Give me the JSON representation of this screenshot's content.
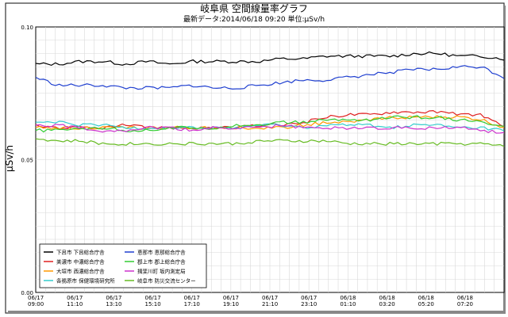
{
  "chart_data": {
    "type": "line",
    "title": "岐阜県 空間線量率グラフ",
    "subtitle": "最新データ:2014/06/18 09:20  単位:μSv/h",
    "ylabel": "μSv/h",
    "ylim": [
      0.0,
      0.1
    ],
    "yticks": [
      "0.00",
      "0.05",
      "0.10"
    ],
    "xticks": [
      {
        "date": "06/17",
        "time": "09:00"
      },
      {
        "date": "06/17",
        "time": "11:10"
      },
      {
        "date": "06/17",
        "time": "13:10"
      },
      {
        "date": "06/17",
        "time": "15:10"
      },
      {
        "date": "06/17",
        "time": "17:10"
      },
      {
        "date": "06/17",
        "time": "19:10"
      },
      {
        "date": "06/17",
        "time": "21:10"
      },
      {
        "date": "06/17",
        "time": "23:10"
      },
      {
        "date": "06/18",
        "time": "01:10"
      },
      {
        "date": "06/18",
        "time": "03:20"
      },
      {
        "date": "06/18",
        "time": "05:20"
      },
      {
        "date": "06/18",
        "time": "07:20"
      }
    ],
    "grid": true,
    "legend_position": "bottom-left",
    "series": [
      {
        "name": "下呂市  下呂総合庁舎",
        "color": "#000000",
        "values": [
          0.086,
          0.086,
          0.087,
          0.087,
          0.086,
          0.087,
          0.086,
          0.087,
          0.087,
          0.087,
          0.087,
          0.088,
          0.088,
          0.089,
          0.089,
          0.089,
          0.089,
          0.09,
          0.09,
          0.089,
          0.089,
          0.088
        ]
      },
      {
        "name": "美濃市  中濃総合庁舎",
        "color": "#e02020",
        "values": [
          0.063,
          0.062,
          0.062,
          0.062,
          0.063,
          0.062,
          0.062,
          0.062,
          0.062,
          0.062,
          0.063,
          0.063,
          0.064,
          0.066,
          0.067,
          0.067,
          0.068,
          0.068,
          0.068,
          0.067,
          0.067,
          0.062
        ]
      },
      {
        "name": "大垣市  西濃総合庁舎",
        "color": "#ff9900",
        "values": [
          0.062,
          0.062,
          0.062,
          0.062,
          0.062,
          0.062,
          0.062,
          0.062,
          0.062,
          0.062,
          0.062,
          0.062,
          0.063,
          0.064,
          0.064,
          0.065,
          0.066,
          0.066,
          0.066,
          0.066,
          0.065,
          0.062
        ]
      },
      {
        "name": "各務原市  保健環境研究所",
        "color": "#33cccc",
        "values": [
          0.064,
          0.064,
          0.063,
          0.063,
          0.062,
          0.062,
          0.062,
          0.062,
          0.062,
          0.062,
          0.063,
          0.063,
          0.062,
          0.063,
          0.063,
          0.063,
          0.062,
          0.063,
          0.063,
          0.062,
          0.062,
          0.061
        ]
      },
      {
        "name": "恵那市  恵那総合庁舎",
        "color": "#1f3fd0",
        "values": [
          0.081,
          0.078,
          0.078,
          0.078,
          0.077,
          0.077,
          0.077,
          0.078,
          0.077,
          0.077,
          0.078,
          0.079,
          0.08,
          0.08,
          0.081,
          0.082,
          0.083,
          0.084,
          0.084,
          0.085,
          0.085,
          0.081
        ]
      },
      {
        "name": "郡上市  郡上総合庁舎",
        "color": "#33cc33",
        "values": [
          0.061,
          0.061,
          0.062,
          0.062,
          0.061,
          0.061,
          0.062,
          0.062,
          0.062,
          0.063,
          0.063,
          0.064,
          0.064,
          0.065,
          0.065,
          0.065,
          0.066,
          0.066,
          0.066,
          0.065,
          0.064,
          0.062
        ]
      },
      {
        "name": "揖斐川町  坂内測定局",
        "color": "#cc33cc",
        "values": [
          0.063,
          0.063,
          0.062,
          0.061,
          0.061,
          0.062,
          0.062,
          0.061,
          0.062,
          0.062,
          0.062,
          0.063,
          0.062,
          0.062,
          0.062,
          0.062,
          0.062,
          0.062,
          0.062,
          0.062,
          0.061,
          0.06
        ]
      },
      {
        "name": "岐阜市  防災交流センター",
        "color": "#66bb22",
        "values": [
          0.058,
          0.057,
          0.057,
          0.056,
          0.056,
          0.056,
          0.056,
          0.056,
          0.056,
          0.056,
          0.057,
          0.057,
          0.057,
          0.057,
          0.056,
          0.056,
          0.056,
          0.056,
          0.056,
          0.056,
          0.056,
          0.055
        ]
      }
    ]
  }
}
